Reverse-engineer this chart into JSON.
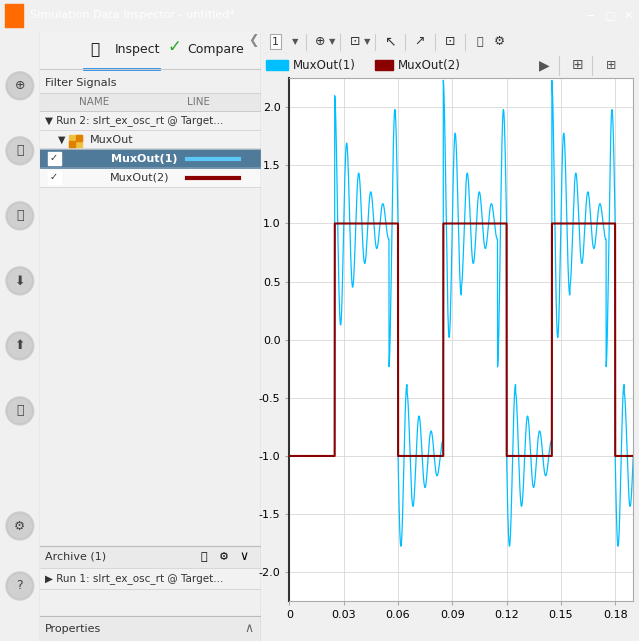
{
  "title_bar": "Simulation Data Inspector - untitled*",
  "title_bar_color": "#2B7BBD",
  "window_bg": "#F0F0F0",
  "panel_bg": "#F2F2F2",
  "plot_bg": "#FFFFFF",
  "plot_grid_color": "#D8D8D8",
  "signal1_color": "#00BFFF",
  "signal2_color": "#8B0000",
  "xlim": [
    0,
    0.19
  ],
  "ylim": [
    -2.25,
    2.25
  ],
  "xtick_labels": [
    "0",
    "0.03",
    "0.06",
    "0.09",
    "0.12",
    "0.15",
    "0.18"
  ],
  "xtick_vals": [
    0,
    0.03,
    0.06,
    0.09,
    0.12,
    0.15,
    0.18
  ],
  "ytick_vals": [
    -2.0,
    -1.5,
    -1.0,
    -0.5,
    0.0,
    0.5,
    1.0,
    1.5,
    2.0
  ],
  "signal1_name": "MuxOut(1)",
  "signal2_name": "MuxOut(2)",
  "sidebar_icon_color": "#5A5A5A",
  "selected_row_bg": "#507A9A",
  "row_border": "#BBBBBB",
  "tab_underline": "#1E88E5",
  "archive_text_color": "#1E88E5"
}
